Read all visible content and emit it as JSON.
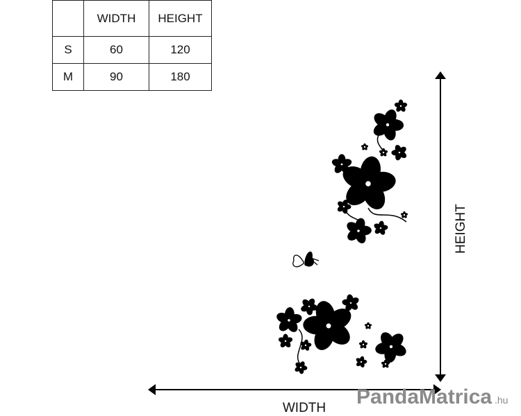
{
  "size_table": {
    "header": [
      "WIDTH",
      "HEIGHT"
    ],
    "rows": [
      [
        "S",
        60,
        120
      ],
      [
        "M",
        90,
        180
      ]
    ]
  },
  "labels": {
    "height": "HEIGHT",
    "width": "WIDTH"
  },
  "watermark": {
    "brand": "PandaMatrica",
    "suffix": ".hu"
  }
}
